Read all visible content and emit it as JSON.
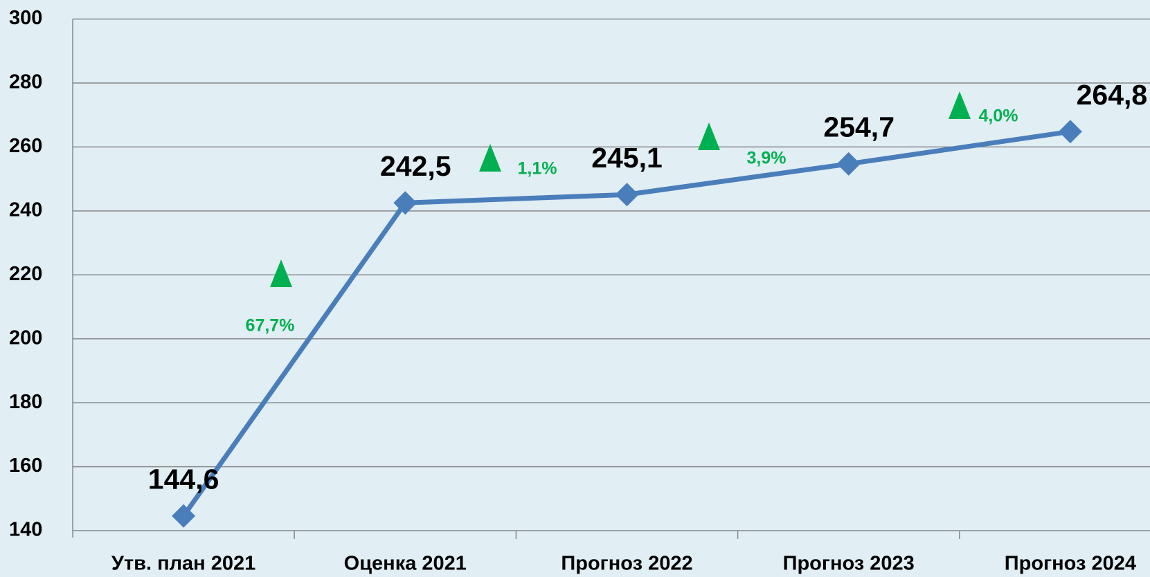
{
  "chart_data": {
    "type": "line",
    "categories": [
      "Утв. план 2021",
      "Оценка 2021",
      "Прогноз 2022",
      "Прогноз 2023",
      "Прогноз 2024"
    ],
    "series": [
      {
        "name": null,
        "color": "#4a7ebb",
        "values": [
          144.6,
          242.5,
          245.1,
          254.7,
          264.8
        ],
        "value_labels": [
          "144,6",
          "242,5",
          "245,1",
          "254,7",
          "264,8"
        ]
      }
    ],
    "ylim": [
      140,
      300
    ],
    "yticks": [
      140,
      160,
      180,
      200,
      220,
      240,
      260,
      280,
      300
    ],
    "grid": true,
    "annotations": [
      {
        "text": "67,7%",
        "color": "#00b050"
      },
      {
        "text": "1,1%",
        "color": "#00b050"
      },
      {
        "text": "3,9%",
        "color": "#00b050"
      },
      {
        "text": "4,0%",
        "color": "#00b050"
      }
    ]
  }
}
